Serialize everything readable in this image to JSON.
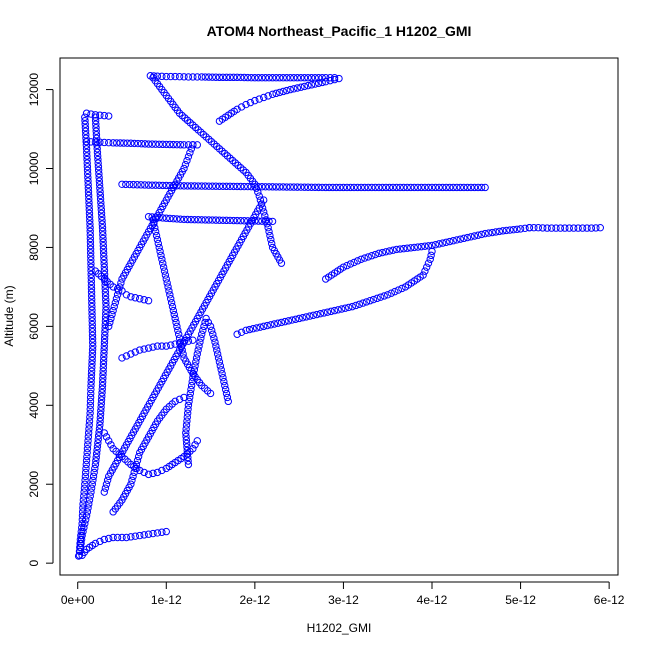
{
  "chart_data": {
    "type": "scatter",
    "title": "ATOM4 Northeast_Pacific_1 H1202_GMI",
    "xlabel": "H1202_GMI",
    "ylabel": "Altitude (m)",
    "xlim": [
      -2e-13,
      6.1e-12
    ],
    "ylim": [
      -300,
      12800
    ],
    "x_ticks": [
      0,
      1e-12,
      2e-12,
      3e-12,
      4e-12,
      5e-12,
      6e-12
    ],
    "x_tick_labels": [
      "0e+00",
      "1e-12",
      "2e-12",
      "3e-12",
      "4e-12",
      "5e-12",
      "6e-12"
    ],
    "y_ticks": [
      0,
      2000,
      4000,
      6000,
      8000,
      10000,
      12000
    ],
    "y_tick_labels": [
      "0",
      "2000",
      "4000",
      "6000",
      "8000",
      "10000",
      "12000"
    ],
    "marker": "open-circle",
    "color": "#0000ff",
    "grid": false,
    "legend": "none",
    "series": [
      {
        "x": [
          8.2e-13,
          9e-13,
          1e-12,
          1.1e-12,
          1.25e-12,
          1.4e-12,
          1.6e-12,
          1.8e-12,
          2e-12,
          2.2e-12,
          2.4e-12,
          2.6e-12,
          2.8e-12,
          2.9e-12
        ],
        "y": [
          12350,
          12340,
          12330,
          12330,
          12320,
          12320,
          12310,
          12310,
          12300,
          12300,
          12300,
          12300,
          12300,
          12300
        ]
      },
      {
        "x": [
          8.5e-13,
          9.5e-13,
          1.05e-12,
          1.15e-12,
          1.3e-12,
          1.45e-12,
          1.6e-12,
          1.75e-12,
          1.9e-12,
          2e-12,
          2.05e-12,
          2.1e-12,
          2.15e-12,
          2.2e-12,
          2.3e-12
        ],
        "y": [
          12300,
          12000,
          11700,
          11400,
          11100,
          10800,
          10500,
          10200,
          9900,
          9600,
          9300,
          8900,
          8500,
          8000,
          7600
        ]
      },
      {
        "x": [
          1.6e-12,
          1.7e-12,
          1.8e-12,
          1.9e-12,
          2e-12,
          2.1e-12,
          2.2e-12,
          2.4e-12,
          2.6e-12,
          2.8e-12,
          2.95e-12
        ],
        "y": [
          11200,
          11350,
          11500,
          11620,
          11720,
          11800,
          11880,
          12000,
          12100,
          12200,
          12280
        ]
      },
      {
        "x": [
          1e-13,
          2e-13,
          3e-13,
          4e-13,
          6e-13,
          8e-13,
          1e-12,
          1.2e-12,
          1.35e-12
        ],
        "y": [
          10680,
          10670,
          10660,
          10650,
          10640,
          10620,
          10610,
          10600,
          10600
        ]
      },
      {
        "x": [
          1e-13,
          1.5e-13,
          2e-13,
          2.5e-13,
          3e-13,
          3.5e-13
        ],
        "y": [
          11400,
          11380,
          11360,
          11350,
          11340,
          11330
        ]
      },
      {
        "x": [
          8e-14,
          1e-13,
          1.2e-13,
          1.4e-13,
          1.5e-13,
          1.6e-13,
          1.7e-13,
          1.5e-13,
          1.4e-13,
          1.2e-13,
          1e-13,
          8e-14,
          6e-14,
          5e-14,
          3e-14,
          2e-14,
          1e-14
        ],
        "y": [
          11300,
          10500,
          9500,
          8500,
          7500,
          6500,
          5500,
          4500,
          3800,
          3200,
          2600,
          2000,
          1500,
          1000,
          600,
          300,
          180
        ]
      },
      {
        "x": [
          2e-13,
          2.2e-13,
          2.5e-13,
          2.8e-13,
          3e-13,
          3.2e-13,
          3e-13,
          2.8e-13,
          2.5e-13,
          2e-13,
          1.5e-13,
          1e-13,
          5e-14,
          2e-14
        ],
        "y": [
          11300,
          10500,
          9500,
          8500,
          7500,
          6500,
          5500,
          4500,
          3500,
          2500,
          1800,
          1200,
          700,
          200
        ]
      },
      {
        "x": [
          5e-13,
          8e-13,
          1.2e-12,
          1.6e-12,
          2e-12,
          2.4e-12,
          2.8e-12,
          3.2e-12,
          3.6e-12,
          4e-12,
          4.4e-12,
          4.6e-12
        ],
        "y": [
          9600,
          9580,
          9560,
          9550,
          9540,
          9530,
          9520,
          9520,
          9520,
          9520,
          9520,
          9520
        ]
      },
      {
        "x": [
          8e-13,
          1e-12,
          1.2e-12,
          1.4e-12,
          1.6e-12,
          1.8e-12,
          2e-12,
          2.2e-12
        ],
        "y": [
          8780,
          8740,
          8710,
          8700,
          8690,
          8680,
          8670,
          8660
        ]
      },
      {
        "x": [
          5.1e-12,
          5.2e-12,
          5.3e-12,
          5.4e-12,
          5.5e-12,
          5.6e-12,
          5.7e-12,
          5.8e-12,
          5.9e-12
        ],
        "y": [
          8500,
          8500,
          8490,
          8490,
          8490,
          8490,
          8490,
          8490,
          8500
        ]
      },
      {
        "x": [
          2.8e-12,
          3e-12,
          3.2e-12,
          3.4e-12,
          3.6e-12,
          3.8e-12,
          4e-12,
          4.2e-12,
          4.4e-12,
          4.6e-12,
          4.8e-12,
          5e-12,
          5.1e-12
        ],
        "y": [
          7200,
          7500,
          7700,
          7850,
          7950,
          8000,
          8050,
          8150,
          8250,
          8350,
          8420,
          8470,
          8500
        ]
      },
      {
        "x": [
          4e-12,
          3.98e-12,
          3.9e-12,
          3.7e-12,
          3.5e-12,
          3.3e-12,
          3.1e-12,
          2.9e-12,
          2.7e-12,
          2.5e-12,
          2.3e-12,
          2.1e-12,
          1.9e-12,
          1.8e-12
        ],
        "y": [
          7900,
          7700,
          7300,
          7000,
          6800,
          6650,
          6500,
          6400,
          6300,
          6200,
          6100,
          6000,
          5900,
          5800
        ]
      },
      {
        "x": [
          2.1e-12,
          2.05e-12,
          1.95e-12,
          1.85e-12,
          1.75e-12,
          1.65e-12,
          1.55e-12,
          1.45e-12,
          1.35e-12,
          1.25e-12,
          1.15e-12,
          1.05e-12,
          9.5e-13,
          8.5e-13,
          7.5e-13,
          6.5e-13,
          5.5e-13,
          4.5e-13,
          3.5e-13,
          3e-13
        ],
        "y": [
          9200,
          9000,
          8600,
          8200,
          7800,
          7400,
          7000,
          6600,
          6200,
          5800,
          5400,
          5000,
          4600,
          4200,
          3800,
          3400,
          3000,
          2600,
          2200,
          1800
        ]
      },
      {
        "x": [
          1.3e-12,
          1.25e-12,
          1.2e-12,
          1.1e-12,
          1e-12,
          9e-13,
          8e-13,
          7e-13,
          6e-13,
          5e-13,
          4.5e-13,
          4e-13,
          3.5e-13
        ],
        "y": [
          10600,
          10300,
          10000,
          9600,
          9200,
          8800,
          8400,
          8000,
          7600,
          7200,
          6800,
          6400,
          6000
        ]
      },
      {
        "x": [
          3e-13,
          3.5e-13,
          4e-13,
          5e-13,
          6e-13,
          7e-13,
          8e-13,
          9e-13,
          1e-12,
          1.1e-12,
          1.2e-12,
          1.3e-12,
          1.35e-12
        ],
        "y": [
          3300,
          3100,
          2900,
          2700,
          2500,
          2350,
          2250,
          2300,
          2400,
          2550,
          2700,
          2900,
          3100
        ]
      },
      {
        "x": [
          4e-13,
          5e-13,
          6e-13,
          6.5e-13,
          7e-13,
          8e-13,
          9e-13,
          1e-12,
          1.1e-12,
          1.2e-12
        ],
        "y": [
          1300,
          1600,
          2000,
          2400,
          2800,
          3200,
          3600,
          3900,
          4100,
          4200
        ]
      },
      {
        "x": [
          1.7e-12,
          1.65e-12,
          1.6e-12,
          1.55e-12,
          1.5e-12,
          1.45e-12,
          1.4e-12,
          1.35e-12,
          1.3e-12,
          1.25e-12,
          1.22e-12,
          1.25e-12
        ],
        "y": [
          4100,
          4600,
          5100,
          5600,
          6000,
          6200,
          5800,
          5300,
          4700,
          4000,
          3300,
          2500
        ]
      },
      {
        "x": [
          8.5e-13,
          9e-13,
          9.5e-13,
          1e-12,
          1.05e-12,
          1.1e-12,
          1.15e-12,
          1.2e-12,
          1.3e-12,
          1.4e-12,
          1.5e-12
        ],
        "y": [
          8700,
          8200,
          7700,
          7200,
          6700,
          6200,
          5700,
          5200,
          4800,
          4500,
          4300
        ]
      },
      {
        "x": [
          5e-14,
          1e-13,
          2e-13,
          3e-13,
          4e-13,
          5.5e-13,
          7e-13,
          8.5e-13,
          1e-12
        ],
        "y": [
          200,
          350,
          500,
          600,
          650,
          650,
          700,
          750,
          800
        ]
      },
      {
        "x": [
          2e-13,
          3e-13,
          4e-13,
          5e-13,
          5.5e-13,
          6e-13,
          7e-13,
          8e-13
        ],
        "y": [
          7400,
          7200,
          7000,
          6900,
          6800,
          6750,
          6700,
          6650
        ]
      },
      {
        "x": [
          5e-13,
          6e-13,
          7e-13,
          8e-13,
          9e-13,
          1e-12,
          1.1e-12,
          1.2e-12,
          1.3e-12
        ],
        "y": [
          5200,
          5300,
          5400,
          5450,
          5500,
          5500,
          5550,
          5600,
          5650
        ]
      }
    ]
  }
}
